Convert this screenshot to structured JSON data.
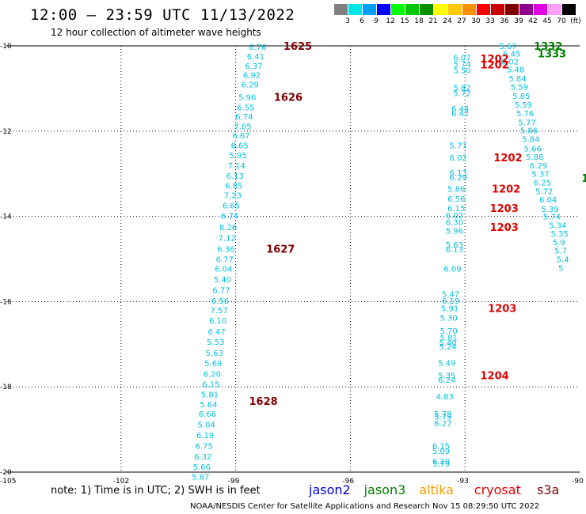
{
  "title": "12:00 — 23:59 UTC 11/13/2022",
  "subtitle": "12 hour collection of altimeter wave heights",
  "colorbar": {
    "colors": [
      "#808080",
      "#00e5e5",
      "#00a0ff",
      "#0000ff",
      "#00ff00",
      "#00c800",
      "#009000",
      "#ffff00",
      "#ffc800",
      "#ff9000",
      "#ff0000",
      "#c80000",
      "#800000",
      "#900090",
      "#e000e0",
      "#ffa0ff",
      "#000000"
    ],
    "labels": [
      "3",
      "6",
      "9",
      "12",
      "15",
      "18",
      "21",
      "24",
      "27",
      "30",
      "33",
      "36",
      "39",
      "42",
      "45",
      "70",
      "(ft)"
    ]
  },
  "lon_labels": [
    "-105",
    "-102",
    "-99",
    "-96",
    "-93",
    "-90"
  ],
  "lat_labels": [
    "-10",
    "-12",
    "-14",
    "-16",
    "-18",
    "-20"
  ],
  "tracks": [
    {
      "color": "#00bfe0",
      "points": [
        {
          "lon": -98.45,
          "lat": -10.02,
          "v": "6.76"
        },
        {
          "lon": -98.5,
          "lat": -10.24,
          "v": "6.41"
        },
        {
          "lon": -98.55,
          "lat": -10.46,
          "v": "6.37"
        },
        {
          "lon": -98.6,
          "lat": -10.68,
          "v": "6.92"
        },
        {
          "lon": -98.65,
          "lat": -10.9,
          "v": "6.29"
        },
        {
          "lon": -98.72,
          "lat": -11.2,
          "v": "5.96"
        },
        {
          "lon": -98.76,
          "lat": -11.44,
          "v": "6.55"
        },
        {
          "lon": -98.8,
          "lat": -11.65,
          "v": "6.74"
        },
        {
          "lon": -98.84,
          "lat": -11.88,
          "v": "7.05"
        },
        {
          "lon": -98.88,
          "lat": -12.1,
          "v": "6.67"
        },
        {
          "lon": -98.92,
          "lat": -12.33,
          "v": "6.65"
        },
        {
          "lon": -98.96,
          "lat": -12.56,
          "v": "5.95"
        },
        {
          "lon": -99,
          "lat": -12.8,
          "v": "7.14"
        },
        {
          "lon": -99.04,
          "lat": -13.04,
          "v": "6.13"
        },
        {
          "lon": -99.07,
          "lat": -13.27,
          "v": "6.85"
        },
        {
          "lon": -99.1,
          "lat": -13.5,
          "v": "7.23"
        },
        {
          "lon": -99.14,
          "lat": -13.74,
          "v": "6.65"
        },
        {
          "lon": -99.18,
          "lat": -13.98,
          "v": "6.74"
        },
        {
          "lon": -99.22,
          "lat": -14.25,
          "v": "8.26"
        },
        {
          "lon": -99.25,
          "lat": -14.5,
          "v": "7.12"
        },
        {
          "lon": -99.28,
          "lat": -14.76,
          "v": "6.36"
        },
        {
          "lon": -99.31,
          "lat": -15.0,
          "v": "6.77"
        },
        {
          "lon": -99.34,
          "lat": -15.22,
          "v": "6.04"
        },
        {
          "lon": -99.37,
          "lat": -15.47,
          "v": "5.40"
        },
        {
          "lon": -99.4,
          "lat": -15.72,
          "v": "6.77"
        },
        {
          "lon": -99.43,
          "lat": -15.97,
          "v": "6.56"
        },
        {
          "lon": -99.46,
          "lat": -16.2,
          "v": "7.57"
        },
        {
          "lon": -99.49,
          "lat": -16.44,
          "v": "6.10"
        },
        {
          "lon": -99.52,
          "lat": -16.7,
          "v": "6.47"
        },
        {
          "lon": -99.55,
          "lat": -16.94,
          "v": "5.53"
        },
        {
          "lon": -99.58,
          "lat": -17.2,
          "v": "5.63"
        },
        {
          "lon": -99.61,
          "lat": -17.44,
          "v": "5.69"
        },
        {
          "lon": -99.64,
          "lat": -17.69,
          "v": "6.20"
        },
        {
          "lon": -99.67,
          "lat": -17.93,
          "v": "6.15"
        },
        {
          "lon": -99.7,
          "lat": -18.17,
          "v": "5.81"
        },
        {
          "lon": -99.73,
          "lat": -18.4,
          "v": "5.64"
        },
        {
          "lon": -99.76,
          "lat": -18.63,
          "v": "6.66"
        },
        {
          "lon": -99.79,
          "lat": -18.88,
          "v": "5.04"
        },
        {
          "lon": -99.82,
          "lat": -19.13,
          "v": "6.19"
        },
        {
          "lon": -99.85,
          "lat": -19.38,
          "v": "6.75"
        },
        {
          "lon": -99.88,
          "lat": -19.63,
          "v": "6.32"
        },
        {
          "lon": -99.91,
          "lat": -19.87,
          "v": "5.66"
        },
        {
          "lon": -99.94,
          "lat": -20.1,
          "v": "5.87"
        }
      ]
    },
    {
      "color": "#00bfe0",
      "points": [
        {
          "lon": -93.1,
          "lat": -10.27,
          "v": "6.07"
        },
        {
          "lon": -93.1,
          "lat": -10.42,
          "v": "5.74"
        },
        {
          "lon": -93.1,
          "lat": -10.57,
          "v": "5.50"
        },
        {
          "lon": -93.1,
          "lat": -10.97,
          "v": "5.82"
        },
        {
          "lon": -93.1,
          "lat": -11.1,
          "v": "5.72"
        },
        {
          "lon": -93.15,
          "lat": -11.47,
          "v": "6.44"
        },
        {
          "lon": -93.15,
          "lat": -11.58,
          "v": "6.42"
        },
        {
          "lon": -93.2,
          "lat": -12.33,
          "v": "5.77"
        },
        {
          "lon": -93.2,
          "lat": -12.62,
          "v": "6.02"
        },
        {
          "lon": -93.2,
          "lat": -12.97,
          "v": "6.13"
        },
        {
          "lon": -93.2,
          "lat": -13.08,
          "v": "6.29"
        },
        {
          "lon": -93.25,
          "lat": -13.35,
          "v": "5.86"
        },
        {
          "lon": -93.25,
          "lat": -13.58,
          "v": "6.56"
        },
        {
          "lon": -93.25,
          "lat": -13.8,
          "v": "6.15"
        },
        {
          "lon": -93.3,
          "lat": -13.97,
          "v": "6.02"
        },
        {
          "lon": -93.3,
          "lat": -14.13,
          "v": "6.30"
        },
        {
          "lon": -93.3,
          "lat": -14.33,
          "v": "5.96"
        },
        {
          "lon": -93.3,
          "lat": -14.66,
          "v": "5.63"
        },
        {
          "lon": -93.3,
          "lat": -14.77,
          "v": "6.13"
        },
        {
          "lon": -93.35,
          "lat": -15.22,
          "v": "6.09"
        },
        {
          "lon": -93.4,
          "lat": -15.82,
          "v": "5.47"
        },
        {
          "lon": -93.4,
          "lat": -15.97,
          "v": "6.19"
        },
        {
          "lon": -93.42,
          "lat": -16.15,
          "v": "5.91"
        },
        {
          "lon": -93.45,
          "lat": -16.37,
          "v": "5.30"
        },
        {
          "lon": -93.45,
          "lat": -16.68,
          "v": "5.70"
        },
        {
          "lon": -93.45,
          "lat": -16.84,
          "v": "5.81"
        },
        {
          "lon": -93.47,
          "lat": -16.96,
          "v": "5.40"
        },
        {
          "lon": -93.47,
          "lat": -17.05,
          "v": "5.24"
        },
        {
          "lon": -93.5,
          "lat": -17.43,
          "v": "5.49"
        },
        {
          "lon": -93.5,
          "lat": -17.73,
          "v": "5.35"
        },
        {
          "lon": -93.5,
          "lat": -17.83,
          "v": "6.24"
        },
        {
          "lon": -93.55,
          "lat": -18.22,
          "v": "4.83"
        },
        {
          "lon": -93.6,
          "lat": -18.63,
          "v": "5.78"
        },
        {
          "lon": -93.6,
          "lat": -18.69,
          "v": "5.79"
        },
        {
          "lon": -93.6,
          "lat": -18.85,
          "v": "6.27"
        },
        {
          "lon": -93.65,
          "lat": -19.38,
          "v": "6.15"
        },
        {
          "lon": -93.65,
          "lat": -19.5,
          "v": "5.09"
        },
        {
          "lon": -93.65,
          "lat": -19.74,
          "v": "6.20"
        },
        {
          "lon": -93.65,
          "lat": -19.8,
          "v": "5.79"
        }
      ]
    },
    {
      "color": "#00bfe0",
      "points": [
        {
          "lon": -91.9,
          "lat": -10.0,
          "v": "5.67"
        },
        {
          "lon": -91.8,
          "lat": -10.18,
          "v": "6.45"
        },
        {
          "lon": -91.85,
          "lat": -10.36,
          "v": "6.02"
        },
        {
          "lon": -91.7,
          "lat": -10.55,
          "v": "5.48"
        },
        {
          "lon": -91.65,
          "lat": -10.76,
          "v": "5.84"
        },
        {
          "lon": -91.6,
          "lat": -10.96,
          "v": "5.59"
        },
        {
          "lon": -91.55,
          "lat": -11.17,
          "v": "5.85"
        },
        {
          "lon": -91.5,
          "lat": -11.37,
          "v": "5.59"
        },
        {
          "lon": -91.45,
          "lat": -11.58,
          "v": "5.76"
        },
        {
          "lon": -91.4,
          "lat": -11.79,
          "v": "5.77"
        },
        {
          "lon": -91.35,
          "lat": -11.98,
          "v": "5.86"
        },
        {
          "lon": -91.3,
          "lat": -12.18,
          "v": "5.84"
        },
        {
          "lon": -91.25,
          "lat": -12.4,
          "v": "5.66"
        },
        {
          "lon": -91.2,
          "lat": -12.6,
          "v": "5.88"
        },
        {
          "lon": -91.1,
          "lat": -12.8,
          "v": "6.29"
        },
        {
          "lon": -91.05,
          "lat": -13.0,
          "v": "5.37"
        },
        {
          "lon": -91,
          "lat": -13.2,
          "v": "6.25"
        },
        {
          "lon": -90.95,
          "lat": -13.4,
          "v": "5.72"
        },
        {
          "lon": -90.85,
          "lat": -13.6,
          "v": "6.04"
        },
        {
          "lon": -90.8,
          "lat": -13.82,
          "v": "5.39"
        },
        {
          "lon": -90.75,
          "lat": -14.0,
          "v": "5.74"
        },
        {
          "lon": -90.6,
          "lat": -14.2,
          "v": "5.34"
        },
        {
          "lon": -90.55,
          "lat": -14.4,
          "v": "5.35"
        },
        {
          "lon": -90.5,
          "lat": -14.6,
          "v": "5.9"
        },
        {
          "lon": -90.45,
          "lat": -14.8,
          "v": "5.7"
        },
        {
          "lon": -90.4,
          "lat": -15.0,
          "v": "5.4"
        },
        {
          "lon": -90.35,
          "lat": -15.2,
          "v": "5"
        }
      ]
    }
  ],
  "time_labels": [
    {
      "lon": -97.75,
      "lat": -10.0,
      "v": "1625",
      "color": "#800000"
    },
    {
      "lon": -98.0,
      "lat": -11.2,
      "v": "1626",
      "color": "#800000"
    },
    {
      "lon": -98.2,
      "lat": -14.76,
      "v": "1627",
      "color": "#800000"
    },
    {
      "lon": -98.65,
      "lat": -18.33,
      "v": "1628",
      "color": "#800000"
    },
    {
      "lon": -92.6,
      "lat": -10.3,
      "v": "1202",
      "color": "#e00000"
    },
    {
      "lon": -92.6,
      "lat": -10.44,
      "v": "1202",
      "color": "#e00000"
    },
    {
      "lon": -92.25,
      "lat": -12.62,
      "v": "1202",
      "color": "#e00000"
    },
    {
      "lon": -92.3,
      "lat": -13.35,
      "v": "1202",
      "color": "#e00000"
    },
    {
      "lon": -92.35,
      "lat": -13.8,
      "v": "1203",
      "color": "#e00000"
    },
    {
      "lon": -92.35,
      "lat": -14.25,
      "v": "1203",
      "color": "#e00000"
    },
    {
      "lon": -92.4,
      "lat": -16.15,
      "v": "1203",
      "color": "#e00000"
    },
    {
      "lon": -92.6,
      "lat": -17.73,
      "v": "1204",
      "color": "#e00000"
    },
    {
      "lon": -91.2,
      "lat": -10.0,
      "v": "1332",
      "color": "#008000"
    },
    {
      "lon": -91.1,
      "lat": -10.18,
      "v": "1333",
      "color": "#008000"
    },
    {
      "lon": -89.95,
      "lat": -13.1,
      "v": "1",
      "color": "#008000"
    }
  ],
  "note": "note: 1) Time is in UTC; 2) SWH is in feet",
  "missions": [
    {
      "name": "jason2",
      "color": "#0000e0"
    },
    {
      "name": "jason3",
      "color": "#008000"
    },
    {
      "name": "altika",
      "color": "#ff9900"
    },
    {
      "name": "cryosat",
      "color": "#e00000"
    },
    {
      "name": "s3a",
      "color": "#800000"
    }
  ],
  "footer": "NOAA/NESDIS Center for Satellite Applications and Research    Nov 15 08:29:50 UTC 2022"
}
